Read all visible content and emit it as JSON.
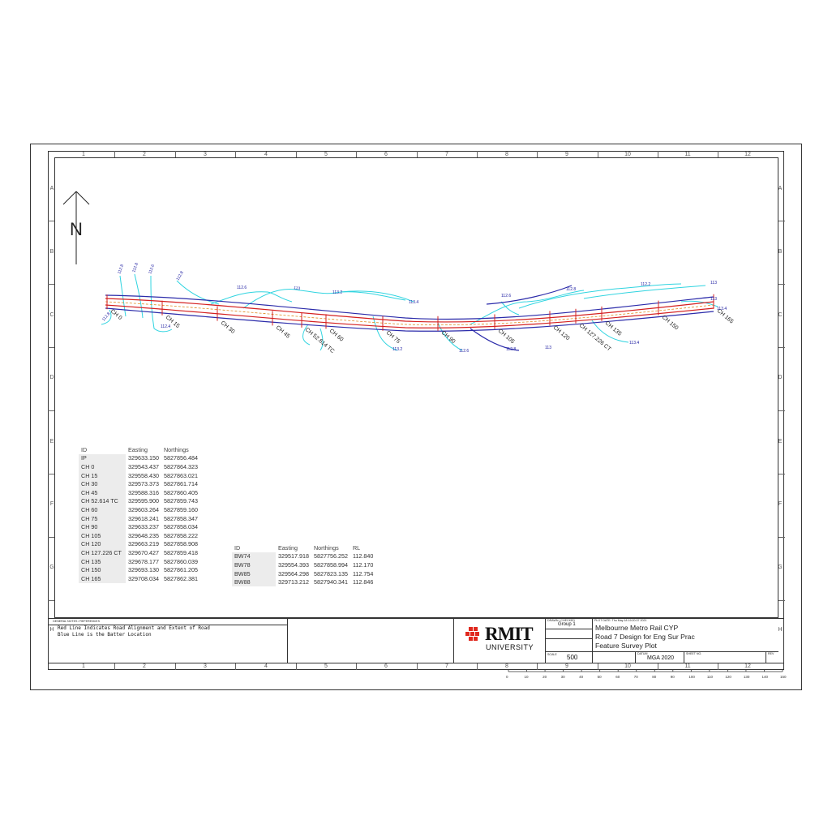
{
  "grid": {
    "columns": [
      "1",
      "2",
      "3",
      "4",
      "5",
      "6",
      "7",
      "8",
      "9",
      "10",
      "11",
      "12"
    ],
    "rows": [
      "A",
      "B",
      "C",
      "D",
      "E",
      "F",
      "G",
      "H"
    ]
  },
  "north_arrow": "N",
  "chainage_labels": [
    "0",
    "15",
    "30",
    "45",
    "52.614 TC",
    "60",
    "75",
    "90",
    "105",
    "120",
    "127.226 CT",
    "135",
    "150",
    "165"
  ],
  "contour_labels": [
    "112.8",
    "112.8",
    "112.6",
    "112.8",
    "112.6",
    "113",
    "113.2",
    "113.4",
    "112.6",
    "112.8",
    "112.2",
    "113",
    "113",
    "113.4",
    "112.4",
    "112.8",
    "113.2",
    "112.6",
    "112.8",
    "113",
    "113.4"
  ],
  "control_table": {
    "headers": [
      "ID",
      "Easting",
      "Northings"
    ],
    "rows": [
      [
        "IP",
        "329633.150",
        "5827856.484"
      ],
      [
        "CH 0",
        "329543.437",
        "5827864.323"
      ],
      [
        "CH 15",
        "329558.430",
        "5827863.021"
      ],
      [
        "CH 30",
        "329573.373",
        "5827861.714"
      ],
      [
        "CH 45",
        "329588.316",
        "5827860.405"
      ],
      [
        "CH 52.614 TC",
        "329595.900",
        "5827859.743"
      ],
      [
        "CH 60",
        "329603.264",
        "5827859.160"
      ],
      [
        "CH 75",
        "329618.241",
        "5827858.347"
      ],
      [
        "CH 90",
        "329633.237",
        "5827858.034"
      ],
      [
        "CH 105",
        "329648.235",
        "5827858.222"
      ],
      [
        "CH 120",
        "329663.219",
        "5827858.908"
      ],
      [
        "CH 127.226 CT",
        "329670.427",
        "5827859.418"
      ],
      [
        "CH 135",
        "329678.177",
        "5827860.039"
      ],
      [
        "CH 150",
        "329693.130",
        "5827861.205"
      ],
      [
        "CH 165",
        "329708.034",
        "5827862.381"
      ]
    ]
  },
  "benchmark_table": {
    "headers": [
      "ID",
      "Easting",
      "Northings",
      "RL"
    ],
    "rows": [
      [
        "BW74",
        "329517.918",
        "5827756.252",
        "112.840"
      ],
      [
        "BW78",
        "329554.393",
        "5827858.994",
        "112.170"
      ],
      [
        "BW85",
        "329564.298",
        "5827823.135",
        "112.754"
      ],
      [
        "BW88",
        "329713.212",
        "5827940.341",
        "112.846"
      ]
    ]
  },
  "title_block": {
    "notes_heading": "GENERAL NOTES / REFERENCES",
    "note_1": "Red Line Indicates Road Alignment and Extent of Road",
    "note_2": "Blue Line is the Batter Location",
    "logo_text": "RMIT",
    "logo_sub": "UNIVERSITY",
    "drawn_label": "DRAWN / CHECKED",
    "group": "Group 1",
    "plot_date": "PLOT DATE: Thu May 18 19:20:37 2021",
    "project": "Melbourne Metro Rail CYP",
    "subject": "Road 7 Design for Eng Sur Prac",
    "drawing": "Feature Survey Plot",
    "scale_label": "SCALE",
    "scale": "500",
    "datum_label": "DATUM",
    "datum": "MGA 2020",
    "sheet_label": "SHEET NO.",
    "rev_label": "REV"
  },
  "scale_bar": [
    "0",
    "10",
    "20",
    "30",
    "40",
    "50",
    "60",
    "70",
    "80",
    "90",
    "100",
    "110",
    "120",
    "130",
    "140",
    "150"
  ],
  "colors": {
    "alignment": "#d42020",
    "batter": "#2b2baa",
    "contour": "#30d4e0",
    "contour_alt": "#1a1aa0",
    "frame": "#333333"
  }
}
